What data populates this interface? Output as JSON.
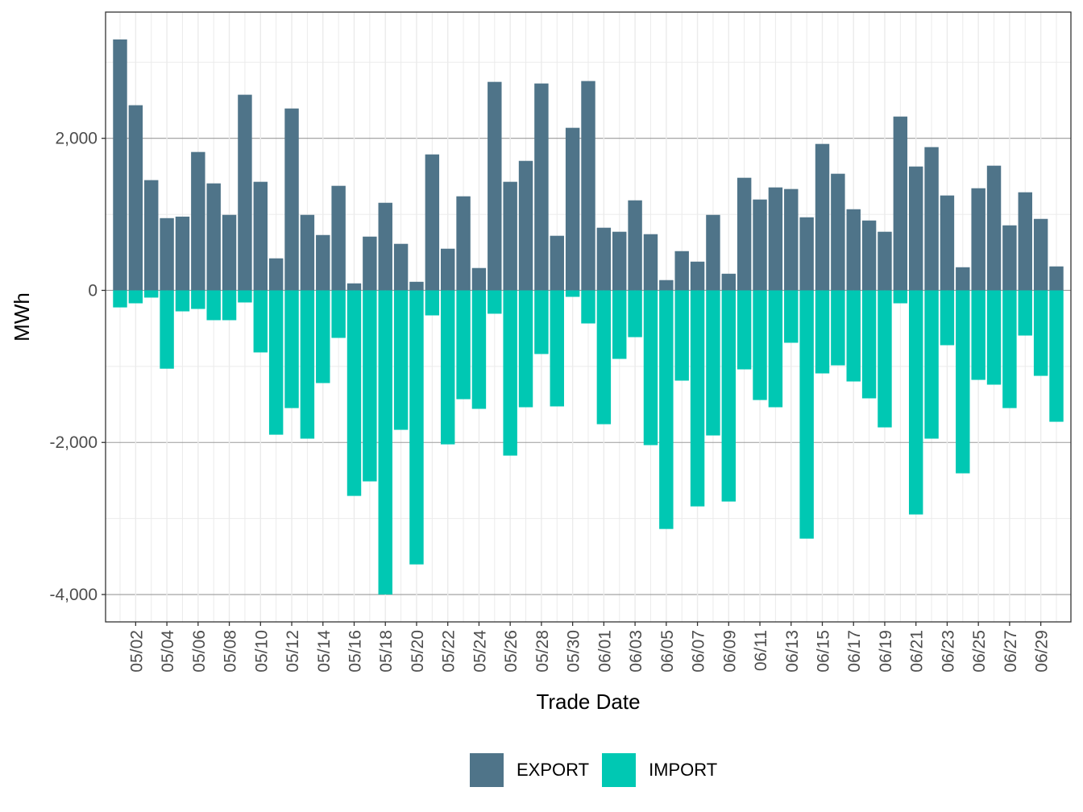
{
  "chart_data": {
    "type": "bar",
    "title": "",
    "xlabel": "Trade Date",
    "ylabel": "MWh",
    "ylim": [
      -4360,
      3660
    ],
    "y_ticks": [
      -4000,
      -2000,
      0,
      2000
    ],
    "y_tick_labels": [
      "-4,000",
      "-2,000",
      "0",
      "2,000"
    ],
    "grid": true,
    "legend_position": "bottom",
    "categories": [
      "05/01",
      "05/02",
      "05/03",
      "05/04",
      "05/05",
      "05/06",
      "05/07",
      "05/08",
      "05/09",
      "05/10",
      "05/11",
      "05/12",
      "05/13",
      "05/14",
      "05/15",
      "05/16",
      "05/17",
      "05/18",
      "05/19",
      "05/20",
      "05/21",
      "05/22",
      "05/23",
      "05/24",
      "05/25",
      "05/26",
      "05/27",
      "05/28",
      "05/29",
      "05/30",
      "05/31",
      "06/01",
      "06/02",
      "06/03",
      "06/04",
      "06/05",
      "06/06",
      "06/07",
      "06/08",
      "06/09",
      "06/10",
      "06/11",
      "06/12",
      "06/13",
      "06/14",
      "06/15",
      "06/16",
      "06/17",
      "06/18",
      "06/19",
      "06/20",
      "06/21",
      "06/22",
      "06/23",
      "06/24",
      "06/25",
      "06/26",
      "06/27",
      "06/28",
      "06/29",
      "06/30"
    ],
    "x_tick_labels": [
      "05/02",
      "05/04",
      "05/06",
      "05/08",
      "05/10",
      "05/12",
      "05/14",
      "05/16",
      "05/18",
      "05/20",
      "05/22",
      "05/24",
      "05/26",
      "05/28",
      "05/30",
      "06/01",
      "06/03",
      "06/05",
      "06/07",
      "06/09",
      "06/11",
      "06/13",
      "06/15",
      "06/17",
      "06/19",
      "06/21",
      "06/23",
      "06/25",
      "06/27",
      "06/29"
    ],
    "series": [
      {
        "name": "EXPORT",
        "color": "#4f7489",
        "values": [
          3300,
          2435,
          1450,
          950,
          970,
          1820,
          1407,
          993,
          2573,
          1428,
          421,
          2392,
          993,
          728,
          1375,
          92,
          707,
          1152,
          612,
          113,
          1788,
          548,
          1237,
          294,
          2742,
          1428,
          1703,
          2721,
          718,
          2138,
          2753,
          824,
          771,
          1184,
          739,
          135,
          516,
          378,
          993,
          219,
          1481,
          1195,
          1354,
          1333,
          961,
          1926,
          1534,
          1067,
          919,
          771,
          2286,
          1629,
          1884,
          1248,
          304,
          1343,
          1640,
          855,
          1290,
          940,
          315
        ]
      },
      {
        "name": "IMPORT",
        "color": "#00c8b3",
        "values": [
          -224,
          -170,
          -95,
          -1030,
          -276,
          -244,
          -392,
          -392,
          -159,
          -816,
          -1898,
          -1548,
          -1950,
          -1219,
          -625,
          -2703,
          -2512,
          -4000,
          -1834,
          -3604,
          -329,
          -2025,
          -1431,
          -1558,
          -307,
          -2173,
          -1537,
          -837,
          -1526,
          -85,
          -435,
          -1760,
          -901,
          -615,
          -2035,
          -3138,
          -1187,
          -2841,
          -1908,
          -2777,
          -1039,
          -1442,
          -1537,
          -689,
          -3265,
          -1092,
          -986,
          -1198,
          -1420,
          -1802,
          -170,
          -2947,
          -1950,
          -721,
          -2406,
          -1177,
          -1240,
          -1548,
          -594,
          -1124,
          -1728
        ]
      }
    ]
  },
  "legend": {
    "items": [
      {
        "label": "EXPORT",
        "color": "#4f7489"
      },
      {
        "label": "IMPORT",
        "color": "#00c8b3"
      }
    ]
  }
}
